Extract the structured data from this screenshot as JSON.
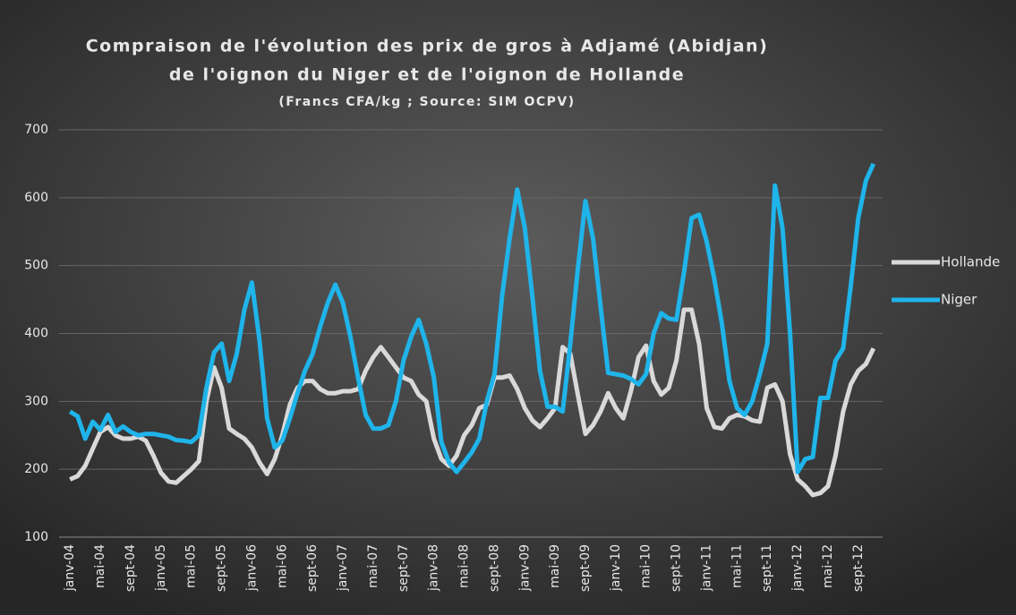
{
  "chart_data": {
    "type": "line",
    "title": [
      "Compraison de l'évolution des prix de gros à Adjamé (Abidjan)",
      "de l'oignon du Niger et de l'oignon de Hollande",
      "(Francs CFA/kg ; Source: SIM OCPV)"
    ],
    "categories": [
      "janv-04",
      null,
      null,
      null,
      "mai-04",
      null,
      null,
      null,
      "sept-04",
      null,
      null,
      null,
      "janv-05",
      null,
      null,
      null,
      "mai-05",
      null,
      null,
      null,
      "sept-05",
      null,
      null,
      null,
      "janv-06",
      null,
      null,
      null,
      "mai-06",
      null,
      null,
      null,
      "sept-06",
      null,
      null,
      null,
      "janv-07",
      null,
      null,
      null,
      "mai-07",
      null,
      null,
      null,
      "sept-07",
      null,
      null,
      null,
      "janv-08",
      null,
      null,
      null,
      "mai-08",
      null,
      null,
      null,
      "sept-08",
      null,
      null,
      null,
      "janv-09",
      null,
      null,
      null,
      "mai-09",
      null,
      null,
      null,
      "sept-09",
      null,
      null,
      null,
      "janv-10",
      null,
      null,
      null,
      "mai-10",
      null,
      null,
      null,
      "sept-10",
      null,
      null,
      null,
      "janv-11",
      null,
      null,
      null,
      "mai-11",
      null,
      null,
      null,
      "sept-11",
      null,
      null,
      null,
      "janv-12",
      null,
      null,
      null,
      "mai-12",
      null,
      null,
      null,
      "sept-12",
      null,
      null
    ],
    "series": [
      {
        "name": "Hollande",
        "color": "#d9d9d9",
        "values": [
          185,
          190,
          205,
          230,
          255,
          262,
          250,
          245,
          245,
          248,
          242,
          220,
          195,
          182,
          180,
          190,
          200,
          212,
          300,
          350,
          320,
          260,
          252,
          245,
          232,
          210,
          193,
          215,
          250,
          295,
          320,
          330,
          330,
          318,
          312,
          312,
          315,
          315,
          318,
          345,
          365,
          380,
          365,
          350,
          335,
          330,
          310,
          300,
          245,
          215,
          205,
          220,
          250,
          265,
          290,
          295,
          335,
          335,
          338,
          318,
          290,
          272,
          262,
          275,
          290,
          380,
          370,
          310,
          252,
          265,
          285,
          312,
          290,
          275,
          315,
          365,
          382,
          330,
          310,
          320,
          360,
          435,
          435,
          385,
          290,
          262,
          260,
          275,
          280,
          278,
          272,
          270,
          320,
          325,
          300,
          222,
          185,
          175,
          162,
          165,
          175,
          220,
          285,
          325,
          345,
          355,
          378
        ]
      },
      {
        "name": "Niger",
        "color": "#1fb4ea",
        "values": [
          285,
          278,
          245,
          270,
          258,
          280,
          255,
          263,
          255,
          250,
          252,
          252,
          250,
          248,
          243,
          242,
          240,
          250,
          320,
          372,
          385,
          330,
          370,
          435,
          475,
          390,
          275,
          232,
          242,
          275,
          312,
          345,
          370,
          410,
          445,
          472,
          445,
          395,
          335,
          280,
          260,
          260,
          265,
          300,
          360,
          395,
          420,
          385,
          335,
          240,
          210,
          196,
          210,
          225,
          245,
          300,
          340,
          455,
          540,
          612,
          555,
          455,
          345,
          292,
          292,
          285,
          385,
          495,
          595,
          540,
          440,
          342,
          340,
          338,
          333,
          325,
          340,
          400,
          430,
          422,
          420,
          490,
          570,
          575,
          535,
          480,
          415,
          330,
          290,
          280,
          300,
          340,
          385,
          618,
          555,
          400,
          196,
          215,
          218,
          305,
          305,
          360,
          378,
          470,
          570,
          625,
          650
        ]
      }
    ],
    "ylim": [
      100,
      700
    ],
    "yticks": [
      100,
      200,
      300,
      400,
      500,
      600,
      700
    ],
    "grid": true,
    "legend": "right"
  }
}
